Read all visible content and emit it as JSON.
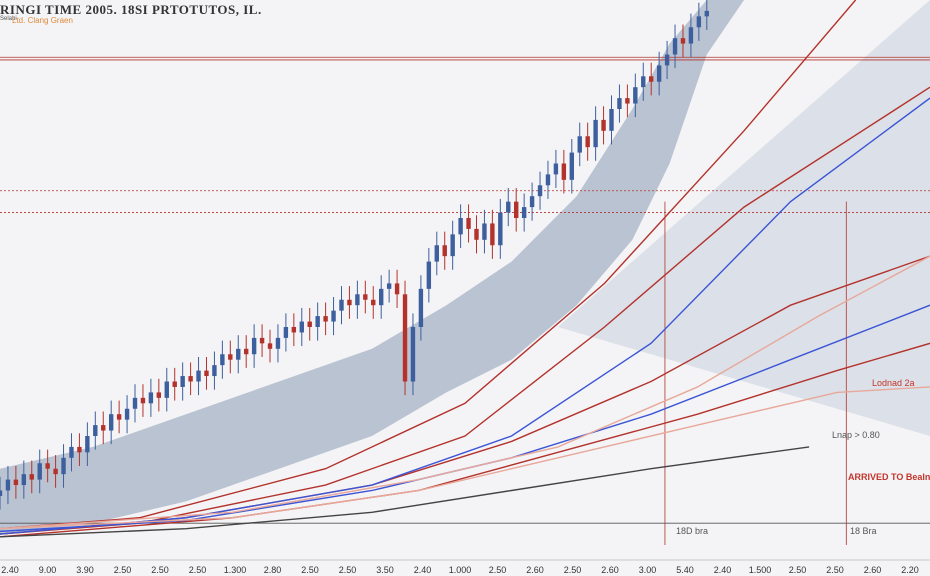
{
  "header": {
    "title": "RINGI TIME 2005. 18SI PRTOTUTOS, IL.",
    "subtitle_prefix": "Selabi",
    "subtitle": "Ltd. Clang Graen"
  },
  "annotations": {
    "top_right": "Lodnad 2a",
    "mid": "Lnap > 0.80",
    "red": "ARRIVED TO Bealn",
    "low_a": "18D bra",
    "low_b": "18 Bra"
  },
  "colors": {
    "bull": "#3d5f9e",
    "bear": "#b3322c",
    "band": "#8a9bb4",
    "band_light": "#c3ccd9",
    "red_line": "#b3322c",
    "blue_line": "#3b55d6",
    "salmon_line": "#e8a89a",
    "gray_line": "#444444"
  },
  "chart_data": {
    "type": "line",
    "title": "RINGI TIME 2005. 18SI PRTOTUTOS, IL.",
    "x_tick_labels": [
      "2.40",
      "9.00",
      "3.90",
      "2.50",
      "2.50",
      "2.50",
      "1.300",
      "2.80",
      "2.50",
      "2.50",
      "3.50",
      "2.40",
      "1.000",
      "2.50",
      "2.60",
      "2.50",
      "2.60",
      "3.00",
      "5.40",
      "2.40",
      "1.500",
      "2.50",
      "2.50",
      "2.60",
      "2.20"
    ],
    "x_range": [
      0,
      100
    ],
    "y_range": [
      0,
      100
    ],
    "grid": false,
    "horizontal_reference_levels": [
      89,
      89.5,
      61,
      65
    ],
    "vertical_reference_x": [
      71.5,
      91
    ],
    "price_series_close": [
      10,
      12,
      11,
      13,
      12,
      15,
      14,
      13,
      16,
      18,
      17,
      20,
      22,
      21,
      24,
      23,
      25,
      27,
      26,
      28,
      27,
      30,
      29,
      31,
      30,
      32,
      31,
      33,
      35,
      34,
      36,
      35,
      38,
      37,
      36,
      38,
      40,
      39,
      41,
      40,
      42,
      41,
      43,
      45,
      44,
      46,
      45,
      44,
      47,
      48,
      46,
      30,
      40,
      47,
      52,
      55,
      53,
      57,
      60,
      58,
      56,
      59,
      55,
      61,
      63,
      60,
      62,
      64,
      66,
      68,
      70,
      67,
      72,
      75,
      73,
      78,
      76,
      80,
      82,
      81,
      84,
      86,
      85,
      88,
      90,
      93,
      92,
      95,
      97,
      98
    ],
    "series": [
      {
        "name": "",
        "color": "red",
        "values": [
          [
            0,
            3
          ],
          [
            15,
            5
          ],
          [
            35,
            14
          ],
          [
            50,
            26
          ],
          [
            65,
            48
          ],
          [
            80,
            76
          ],
          [
            92,
            100
          ]
        ]
      },
      {
        "name": "",
        "color": "red",
        "values": [
          [
            0,
            2
          ],
          [
            15,
            4
          ],
          [
            35,
            11
          ],
          [
            50,
            20
          ],
          [
            65,
            40
          ],
          [
            80,
            62
          ],
          [
            100,
            84
          ]
        ]
      },
      {
        "name": "",
        "color": "red",
        "values": [
          [
            0,
            2
          ],
          [
            20,
            5
          ],
          [
            40,
            11
          ],
          [
            55,
            19
          ],
          [
            70,
            30
          ],
          [
            85,
            44
          ],
          [
            100,
            53
          ]
        ]
      },
      {
        "name": "",
        "color": "red",
        "values": [
          [
            0,
            1.5
          ],
          [
            25,
            5
          ],
          [
            45,
            10
          ],
          [
            60,
            17
          ],
          [
            75,
            24
          ],
          [
            90,
            32
          ],
          [
            100,
            37
          ]
        ]
      },
      {
        "name": "",
        "color": "blue",
        "values": [
          [
            0,
            2
          ],
          [
            20,
            5
          ],
          [
            40,
            11
          ],
          [
            55,
            20
          ],
          [
            70,
            37
          ],
          [
            85,
            63
          ],
          [
            100,
            82
          ]
        ]
      },
      {
        "name": "",
        "color": "blue",
        "values": [
          [
            0,
            2.5
          ],
          [
            20,
            4.5
          ],
          [
            40,
            10
          ],
          [
            55,
            16
          ],
          [
            70,
            24
          ],
          [
            85,
            34
          ],
          [
            100,
            44
          ]
        ]
      },
      {
        "name": "",
        "color": "salmon",
        "values": [
          [
            0,
            3
          ],
          [
            25,
            6
          ],
          [
            45,
            12
          ],
          [
            60,
            18
          ],
          [
            75,
            29
          ],
          [
            88,
            42
          ],
          [
            100,
            53
          ]
        ]
      },
      {
        "name": "",
        "color": "salmon",
        "values": [
          [
            0,
            3
          ],
          [
            25,
            5
          ],
          [
            45,
            10
          ],
          [
            60,
            16
          ],
          [
            75,
            22
          ],
          [
            90,
            28
          ],
          [
            100,
            29
          ]
        ]
      },
      {
        "name": "",
        "color": "gray",
        "values": [
          [
            0,
            1.5
          ],
          [
            20,
            3
          ],
          [
            40,
            6
          ],
          [
            55,
            10
          ],
          [
            70,
            14
          ],
          [
            87,
            18
          ]
        ]
      }
    ],
    "band_upper": [
      [
        0,
        14
      ],
      [
        10,
        18
      ],
      [
        20,
        24
      ],
      [
        30,
        30
      ],
      [
        40,
        36
      ],
      [
        48,
        44
      ],
      [
        55,
        52
      ],
      [
        62,
        64
      ],
      [
        68,
        80
      ],
      [
        72,
        92
      ],
      [
        76,
        100
      ],
      [
        100,
        100
      ]
    ],
    "band_lower": [
      [
        0,
        2
      ],
      [
        10,
        4
      ],
      [
        20,
        8
      ],
      [
        30,
        14
      ],
      [
        40,
        20
      ],
      [
        48,
        28
      ],
      [
        55,
        34
      ],
      [
        62,
        44
      ],
      [
        68,
        56
      ],
      [
        72,
        70
      ],
      [
        76,
        90
      ],
      [
        80,
        100
      ]
    ]
  }
}
